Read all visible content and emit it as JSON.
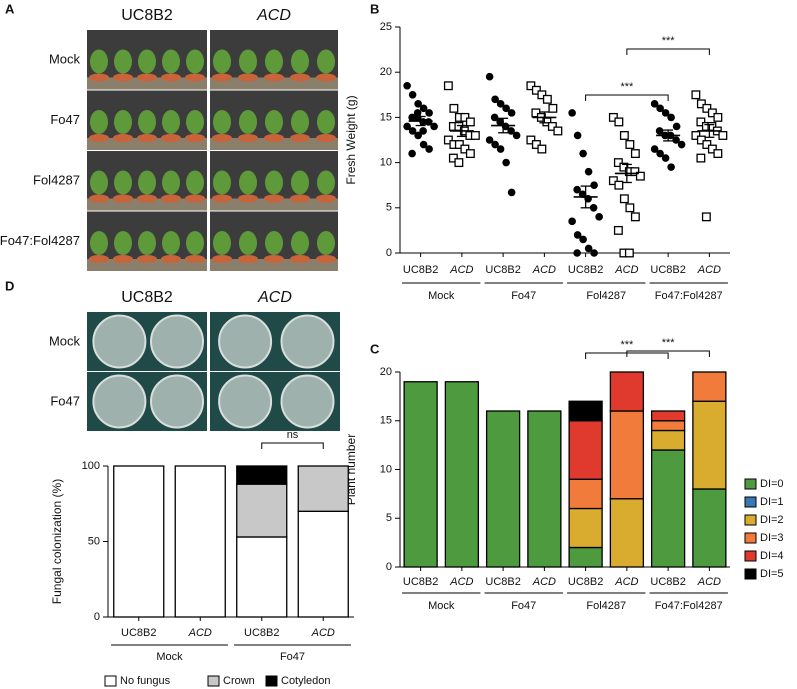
{
  "photos": [
    {
      "panel_label": "A",
      "columns": [
        "UC8B2",
        "ACD"
      ],
      "rows": [
        "Mock",
        "Fo47",
        "Fol4287",
        "Fo47:Fol4287"
      ]
    },
    {
      "columns": [
        "UC8B2",
        "ACD"
      ],
      "rows": [
        "Mock",
        "Fo47"
      ]
    }
  ],
  "chart_data": [
    {
      "type": "strip",
      "panel_label": "B",
      "ylabel": "Fresh Weight (g)",
      "categories": [
        "UC8B2",
        "ACD",
        "UC8B2",
        "ACD",
        "UC8B2",
        "ACD",
        "UC8B2",
        "ACD"
      ],
      "group_labels": [
        "Mock",
        "Fo47",
        "Fol4287",
        "Fo47:Fol4287"
      ],
      "marker_styles": [
        "filled-circle",
        "open-square"
      ],
      "points": [
        [
          18.5,
          17.5,
          16.5,
          16,
          15.5,
          15,
          15,
          14.5,
          14.5,
          14,
          14,
          13.5,
          13,
          12,
          11.5,
          11,
          15.5,
          13.5
        ],
        [
          18.5,
          16,
          15,
          15,
          14.5,
          14,
          14,
          13.5,
          13,
          13,
          12.5,
          12,
          12,
          11.5,
          11,
          10.5,
          10
        ],
        [
          19.5,
          17,
          16.5,
          16,
          15.5,
          15,
          14.5,
          14,
          13.5,
          13,
          12.5,
          12,
          11.5,
          10,
          6.7
        ],
        [
          18.5,
          18,
          17.5,
          17,
          16,
          15.5,
          15,
          14.5,
          14,
          13.5,
          12.5,
          12,
          11.5
        ],
        [
          15.5,
          13,
          11,
          9,
          7.5,
          7,
          6.5,
          6,
          5,
          4,
          3.5,
          2,
          1.5,
          0.5,
          0,
          0
        ],
        [
          15,
          14.5,
          13,
          12,
          11,
          10,
          9.5,
          9,
          9,
          8.5,
          8,
          7.5,
          6,
          5,
          4,
          2.5,
          0,
          0
        ],
        [
          16.5,
          16,
          15.5,
          15,
          14,
          13.5,
          13,
          13,
          12.5,
          12,
          11.5,
          11,
          10.5,
          9.5
        ],
        [
          17.5,
          16.5,
          16,
          15.5,
          15,
          14.5,
          14,
          14,
          13.5,
          13,
          13,
          12.5,
          12,
          11.5,
          11,
          10.5,
          4
        ]
      ],
      "means": [
        14.6,
        13.5,
        14.1,
        15,
        6.2,
        8.8,
        13,
        13.5
      ],
      "sems": [
        0.5,
        0.6,
        0.8,
        0.6,
        1.2,
        1,
        0.6,
        0.7
      ],
      "comparisons": [
        {
          "pair": [
            4,
            6
          ],
          "label": "***"
        },
        {
          "pair": [
            5,
            7
          ],
          "label": "***"
        }
      ],
      "ylim": [
        0,
        25
      ],
      "yticks": [
        0,
        5,
        10,
        15,
        20,
        25
      ]
    },
    {
      "type": "stacked-bar",
      "panel_label": "C",
      "ylabel": "Plant number",
      "categories": [
        "UC8B2",
        "ACD",
        "UC8B2",
        "ACD",
        "UC8B2",
        "ACD",
        "UC8B2",
        "ACD"
      ],
      "group_labels": [
        "Mock",
        "Fo47",
        "Fol4287",
        "Fo47:Fol4287"
      ],
      "series": [
        {
          "name": "DI=0",
          "color": "#4e9a3f",
          "values": [
            19,
            19,
            16,
            16,
            2,
            0,
            12,
            8
          ]
        },
        {
          "name": "DI=1",
          "color": "#3a77b5",
          "values": [
            0,
            0,
            0,
            0,
            0,
            0,
            0,
            0
          ]
        },
        {
          "name": "DI=2",
          "color": "#d9ac30",
          "values": [
            0,
            0,
            0,
            0,
            4,
            7,
            2,
            9
          ]
        },
        {
          "name": "DI=3",
          "color": "#f07b3b",
          "values": [
            0,
            0,
            0,
            0,
            3,
            9,
            1,
            3
          ]
        },
        {
          "name": "DI=4",
          "color": "#e03a2f",
          "values": [
            0,
            0,
            0,
            0,
            6,
            4,
            1,
            0
          ]
        },
        {
          "name": "DI=5",
          "color": "#000000",
          "values": [
            0,
            0,
            0,
            0,
            2,
            0,
            0,
            0
          ]
        }
      ],
      "comparisons": [
        {
          "pair": [
            4,
            6
          ],
          "label": "***"
        },
        {
          "pair": [
            5,
            7
          ],
          "label": "***"
        }
      ],
      "legend": "right",
      "ylim": [
        0,
        20
      ],
      "yticks": [
        0,
        5,
        10,
        15,
        20
      ]
    },
    {
      "type": "stacked-bar",
      "panel_label": "D",
      "ylabel": "Fungal colonization (%)",
      "categories": [
        "UC8B2",
        "ACD",
        "UC8B2",
        "ACD"
      ],
      "group_labels": [
        "Mock",
        "Fo47"
      ],
      "series": [
        {
          "name": "No fungus",
          "color": "#ffffff",
          "values": [
            100,
            100,
            53,
            70
          ]
        },
        {
          "name": "Crown",
          "color": "#c8c8c8",
          "values": [
            0,
            0,
            35,
            30
          ]
        },
        {
          "name": "Cotyledon",
          "color": "#000000",
          "values": [
            0,
            0,
            12,
            0
          ]
        }
      ],
      "comparisons": [
        {
          "pair": [
            2,
            3
          ],
          "label": "ns"
        }
      ],
      "legend": "bottom",
      "ylim": [
        0,
        100
      ],
      "yticks": [
        0,
        50,
        100
      ]
    }
  ]
}
